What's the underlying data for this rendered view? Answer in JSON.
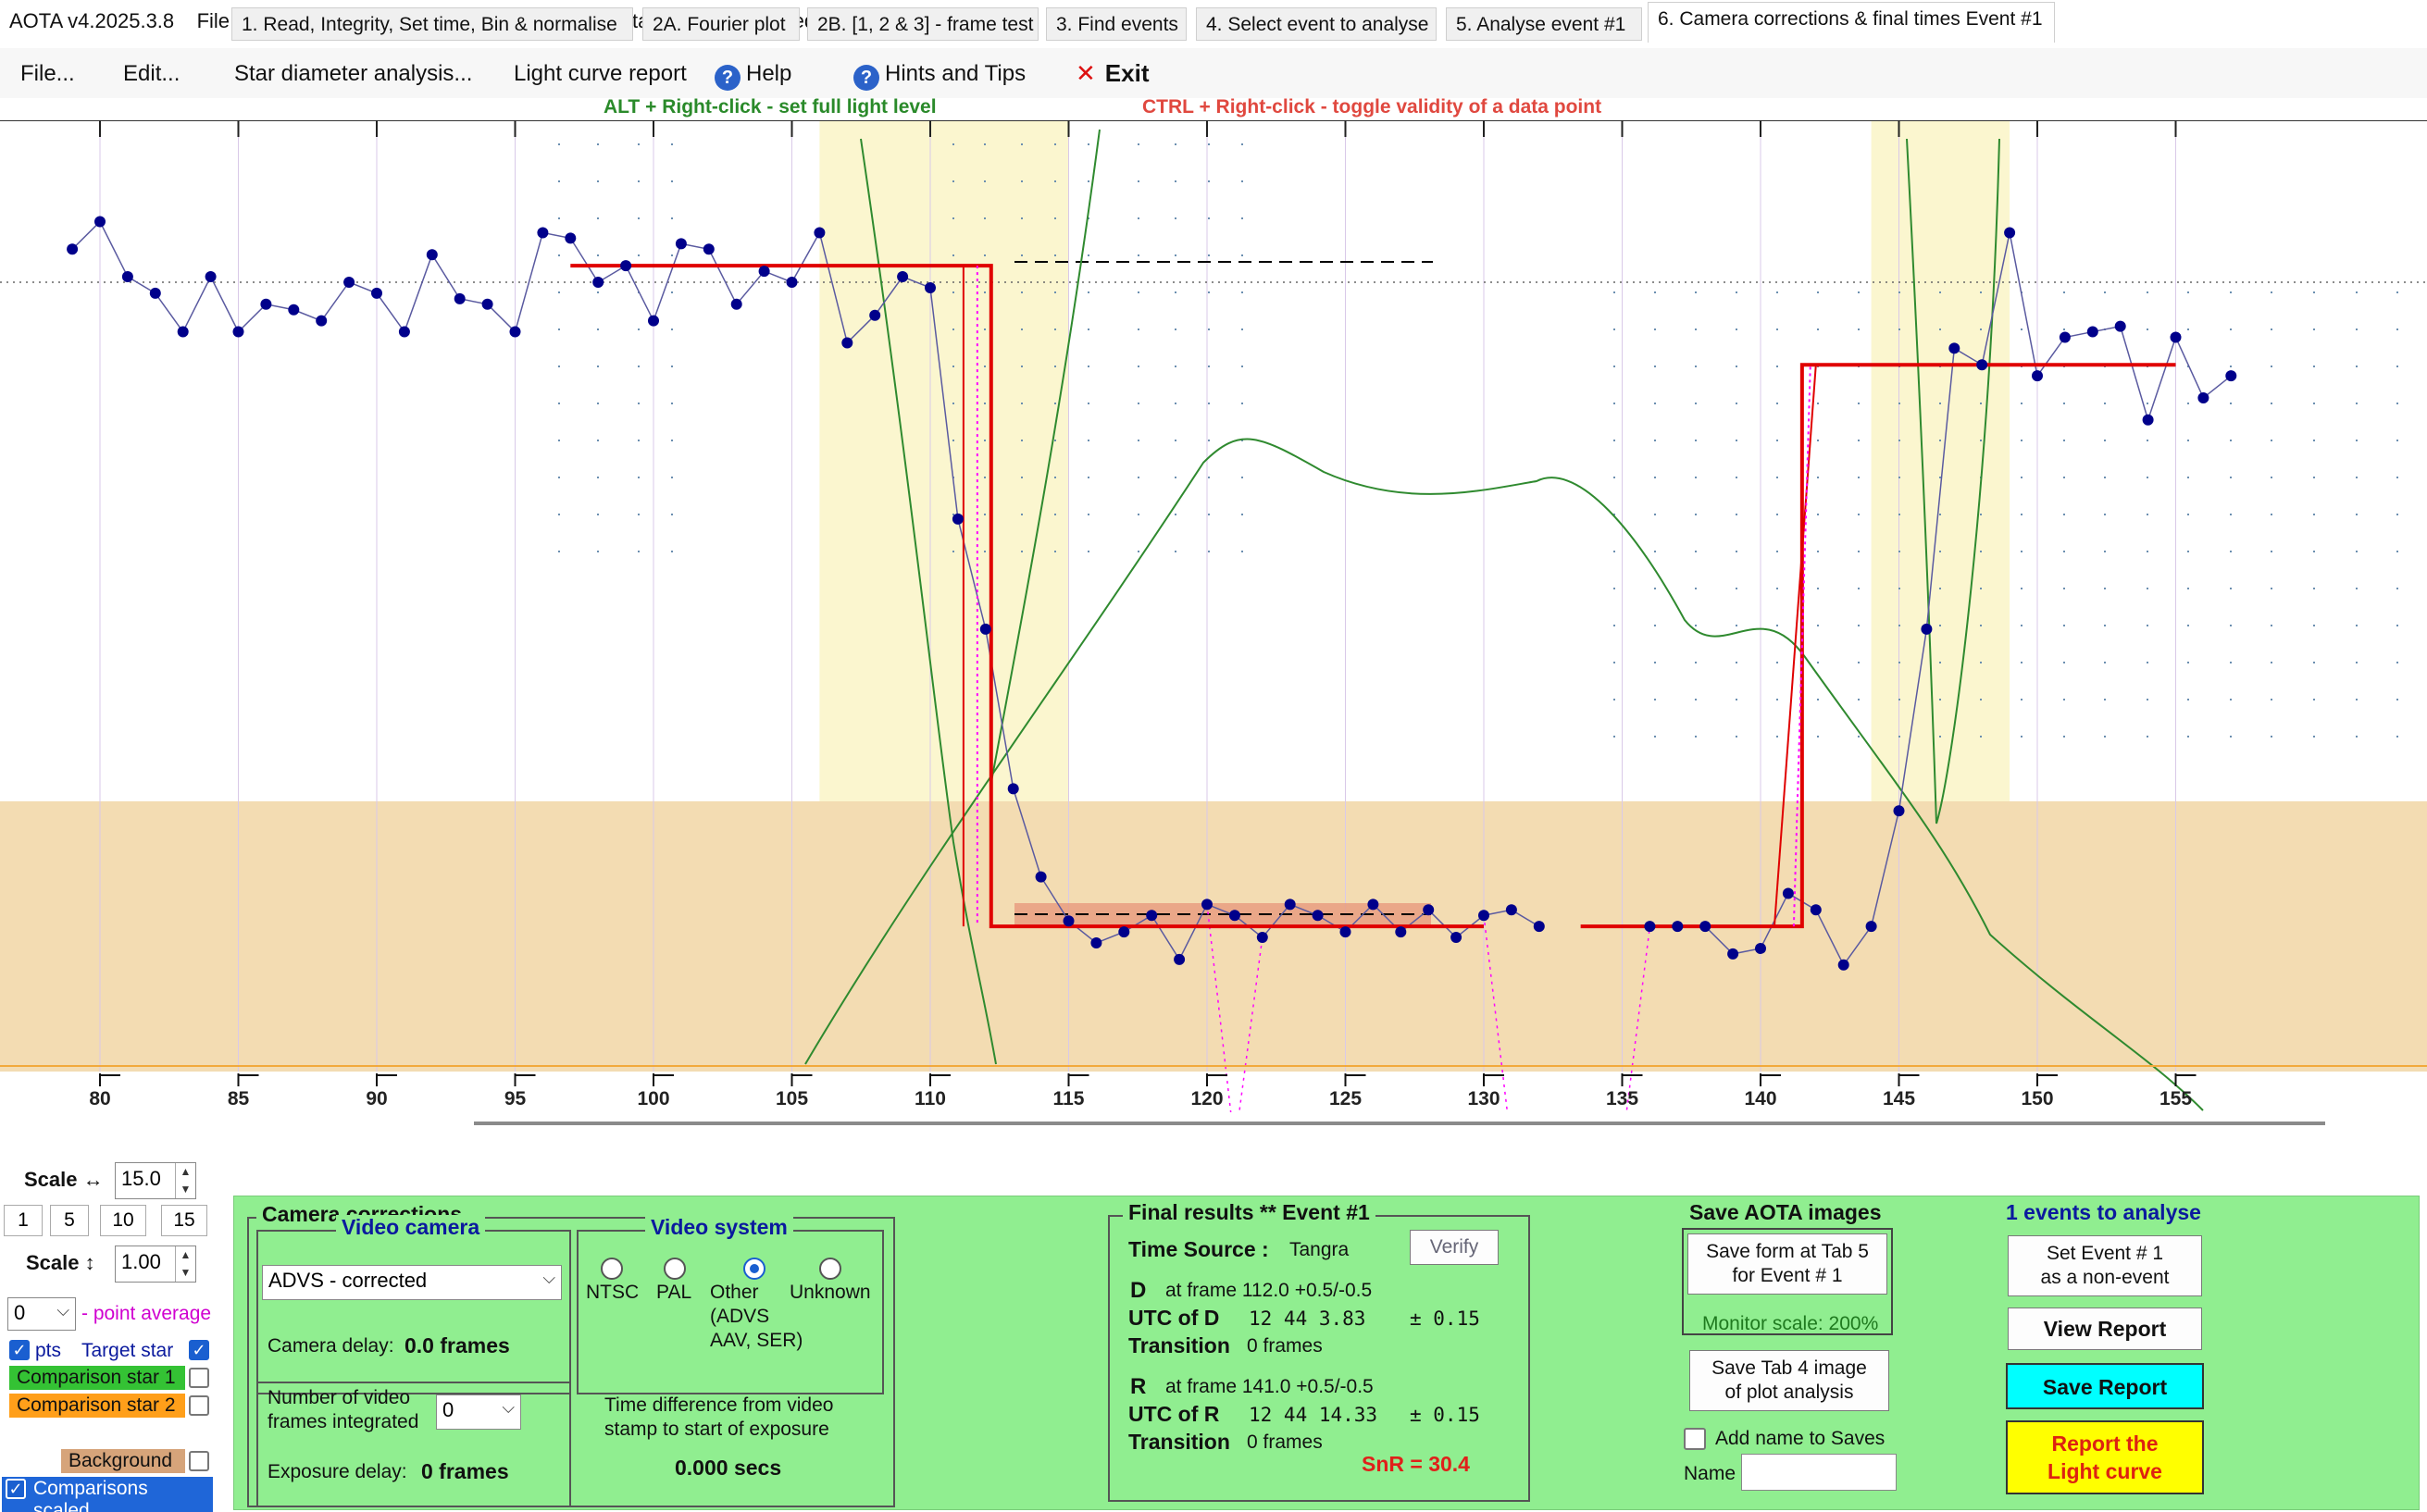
{
  "window": {
    "title": "AOTA v4.2025.3.8    File being processed is  v3 tracked 50 155 difft stars.csv ,  measured with Tangra"
  },
  "menu": {
    "file": "File...",
    "edit": "Edit...",
    "star_diameter": "Star diameter analysis...",
    "light_curve_report": "Light curve report",
    "help": "Help",
    "hints": "Hints and Tips",
    "exit": "Exit"
  },
  "hints": {
    "alt": "ALT + Right-click  -  set full light level",
    "ctrl": "CTRL + Right-click  -  toggle validity of a data point"
  },
  "colors": {
    "window_bg": "#ffffff",
    "panel_green": "#90ee90",
    "event_zone": "#f3dcb2",
    "yellow_band": "#fbf6cf",
    "data_line": "#5a5aa0",
    "data_points": "#00008b",
    "model_red": "#e00000",
    "green_curve": "#2f8a2f",
    "magenta_dots": "#ff00ff"
  },
  "chart_data": {
    "type": "line",
    "xlabel": "",
    "ylabel": "",
    "xlim": [
      78.5,
      157.5
    ],
    "ylim": [
      -0.55,
      1.32
    ],
    "x_ticks": [
      80,
      85,
      90,
      95,
      100,
      105,
      110,
      115,
      120,
      125,
      130,
      135,
      140,
      145,
      150,
      155
    ],
    "grid": true,
    "series": [
      {
        "values": [
          [
            79,
            1.03
          ],
          [
            80,
            1.08
          ],
          [
            81,
            0.98
          ],
          [
            82,
            0.95
          ],
          [
            83,
            0.88
          ],
          [
            84,
            0.98
          ],
          [
            85,
            0.88
          ],
          [
            86,
            0.93
          ],
          [
            87,
            0.92
          ],
          [
            88,
            0.9
          ],
          [
            89,
            0.97
          ],
          [
            90,
            0.95
          ],
          [
            91,
            0.88
          ],
          [
            92,
            1.02
          ],
          [
            93,
            0.94
          ],
          [
            94,
            0.93
          ],
          [
            95,
            0.88
          ],
          [
            96,
            1.06
          ],
          [
            97,
            1.05
          ],
          [
            98,
            0.97
          ],
          [
            99,
            1.0
          ],
          [
            100,
            0.9
          ],
          [
            101,
            1.04
          ],
          [
            102,
            1.03
          ],
          [
            103,
            0.93
          ],
          [
            104,
            0.99
          ],
          [
            105,
            0.97
          ],
          [
            106,
            1.06
          ],
          [
            107,
            0.86
          ],
          [
            108,
            0.91
          ],
          [
            109,
            0.98
          ],
          [
            110,
            0.96
          ],
          [
            111,
            0.54
          ],
          [
            112,
            0.34
          ],
          [
            113,
            0.05
          ],
          [
            114,
            -0.11
          ],
          [
            115,
            -0.19
          ],
          [
            116,
            -0.23
          ],
          [
            117,
            -0.21
          ],
          [
            118,
            -0.18
          ],
          [
            119,
            -0.26
          ],
          [
            120,
            -0.16
          ],
          [
            121,
            -0.18
          ],
          [
            122,
            -0.22
          ],
          [
            123,
            -0.16
          ],
          [
            124,
            -0.18
          ],
          [
            125,
            -0.21
          ],
          [
            126,
            -0.16
          ],
          [
            127,
            -0.21
          ],
          [
            128,
            -0.17
          ],
          [
            129,
            -0.22
          ],
          [
            130,
            -0.18
          ],
          [
            131,
            -0.17
          ],
          [
            132,
            -0.2
          ],
          [
            136,
            -0.2
          ],
          [
            137,
            -0.2
          ],
          [
            138,
            -0.2
          ],
          [
            139,
            -0.25
          ],
          [
            140,
            -0.24
          ],
          [
            141,
            -0.14
          ],
          [
            142,
            -0.17
          ],
          [
            143,
            -0.27
          ],
          [
            144,
            -0.2
          ],
          [
            145,
            0.01
          ],
          [
            146,
            0.34
          ],
          [
            147,
            0.85
          ],
          [
            148,
            0.82
          ],
          [
            149,
            1.06
          ],
          [
            150,
            0.8
          ],
          [
            151,
            0.87
          ],
          [
            152,
            0.88
          ],
          [
            153,
            0.89
          ],
          [
            154,
            0.72
          ],
          [
            155,
            0.87
          ],
          [
            156,
            0.76
          ],
          [
            157,
            0.8
          ]
        ]
      }
    ],
    "invalid_points": [
      [
        121,
        -0.6
      ],
      [
        131,
        -0.6
      ],
      [
        132,
        -0.6
      ],
      [
        133,
        -0.6
      ],
      [
        134,
        -0.6
      ],
      [
        135,
        -0.6
      ]
    ],
    "model_d": {
      "full_level": 1.0,
      "zero_level": -0.2,
      "frame": 112.0
    },
    "model_r": {
      "full_level": 0.82,
      "zero_level": -0.2,
      "frame": 141.0
    },
    "highlight_regions": [
      [
        106,
        115
      ],
      [
        144,
        149
      ]
    ]
  },
  "left": {
    "scale_h_label": "Scale ↔",
    "scale_h_value": "15.0",
    "scale_buttons": [
      "1",
      "5",
      "10",
      "15"
    ],
    "scale_v_label": "Scale ↕",
    "scale_v_value": "1.00",
    "point_avg_value": "0",
    "point_avg_label": "- point average",
    "pts_label": "pts",
    "target_star": "Target star",
    "comp1": "Comparison star 1",
    "comp2": "Comparison star 2",
    "background": "Background",
    "comps_scaled": "Comparisons scaled"
  },
  "tabs": [
    "1.  Read, Integrity, Set time, Bin & normalise",
    "2A. Fourier plot",
    "2B. [1, 2 & 3] - frame test",
    "3. Find events",
    "4. Select event to analyse",
    "5. Analyse event #1",
    "6. Camera corrections & final times Event #1"
  ],
  "camera": {
    "title": "Camera corrections",
    "video_camera_title": "Video camera",
    "camera_value": "ADVS - corrected",
    "camera_delay_label": "Camera delay:",
    "camera_delay_value": "0.0 frames",
    "video_system_title": "Video system",
    "systems": [
      "NTSC",
      "PAL",
      "Other",
      "Unknown"
    ],
    "other_detail": [
      "(ADVS",
      "AAV, SER)"
    ],
    "frames_label_1": "Number of video",
    "frames_label_2": "frames integrated",
    "frames_value": "0",
    "exposure_label": "Exposure delay:",
    "exposure_value": "0 frames",
    "timediff_1": "Time difference from video",
    "timediff_2": "stamp to start of exposure",
    "timediff_value": "0.000 secs"
  },
  "results": {
    "title": "Final results  **  Event #1",
    "time_source_label": "Time Source :",
    "time_source_value": "Tangra",
    "verify": "Verify",
    "d_label": "D",
    "d_frame": "at frame 112.0 +0.5/-0.5",
    "utc_d_label": "UTC of D",
    "utc_d_value": "12 44  3.83",
    "utc_d_err": "± 0.15",
    "trans_label": "Transition",
    "trans_d_value": "0 frames",
    "r_label": "R",
    "r_frame": "at frame 141.0 +0.5/-0.5",
    "utc_r_label": "UTC of R",
    "utc_r_value": "12 44 14.33",
    "utc_r_err": "± 0.15",
    "trans_r_value": "0 frames",
    "snr": "SnR = 30.4"
  },
  "save": {
    "title": "Save AOTA images",
    "save_form_1": "Save form at Tab 5",
    "save_form_2": "for Event # 1",
    "monitor_scale": "Monitor scale: 200%",
    "save_tab4_1": "Save Tab 4 image",
    "save_tab4_2": "of plot analysis",
    "add_name": "Add name to Saves",
    "name_label": "Name",
    "name_value": ""
  },
  "events": {
    "title": "1 events to analyse",
    "set_event_1": "Set Event # 1",
    "set_event_2": "as a non-event",
    "view_report": "View Report",
    "save_report": "Save Report",
    "report_1": "Report the",
    "report_2": "Light curve"
  }
}
